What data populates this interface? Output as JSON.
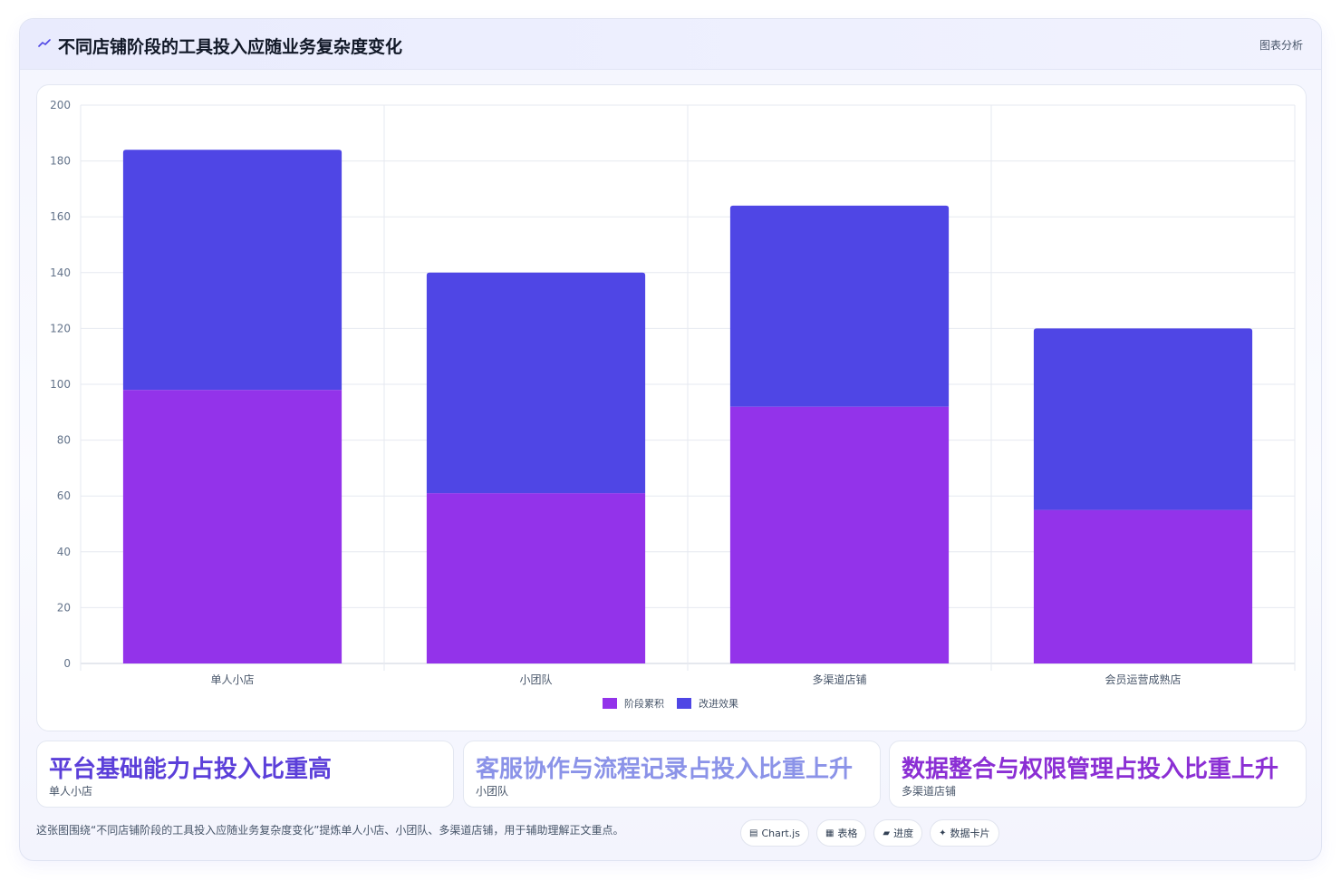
{
  "header": {
    "title": "不同店铺阶段的工具投入应随业务复杂度变化",
    "tag": "图表分析",
    "icon": "trend-line-icon"
  },
  "chart_data": {
    "type": "bar",
    "stacked": true,
    "categories": [
      "单人小店",
      "小团队",
      "多渠道店铺",
      "会员运营成熟店"
    ],
    "series": [
      {
        "name": "阶段累积",
        "color": "#9333ea",
        "values": [
          98,
          61,
          92,
          55
        ]
      },
      {
        "name": "改进效果",
        "color": "#4f46e5",
        "values": [
          86,
          79,
          72,
          65
        ]
      }
    ],
    "ylim": [
      0,
      200
    ],
    "yticks": [
      0,
      20,
      40,
      60,
      80,
      100,
      120,
      140,
      160,
      180,
      200
    ],
    "grid": true,
    "legend": "bottom"
  },
  "stats": [
    {
      "title": "平台基础能力占投入比重高",
      "sub": "单人小店",
      "color": "#5b3fd9"
    },
    {
      "title": "客服协作与流程记录占投入比重上升",
      "sub": "小团队",
      "color": "#8b93e8"
    },
    {
      "title": "数据整合与权限管理占投入比重上升",
      "sub": "多渠道店铺",
      "color": "#8b2fd4"
    }
  ],
  "footer": {
    "text": "这张图围绕“不同店铺阶段的工具投入应随业务复杂度变化”提炼单人小店、小团队、多渠道店铺，用于辅助理解正文重点。",
    "chips": [
      {
        "glyph": "▤",
        "icon": "chart-icon",
        "label": "Chart.js"
      },
      {
        "glyph": "▦",
        "icon": "table-icon",
        "label": "表格"
      },
      {
        "glyph": "▰",
        "icon": "progress-icon",
        "label": "进度"
      },
      {
        "glyph": "✦",
        "icon": "sparkle-icon",
        "label": "数据卡片"
      }
    ]
  }
}
